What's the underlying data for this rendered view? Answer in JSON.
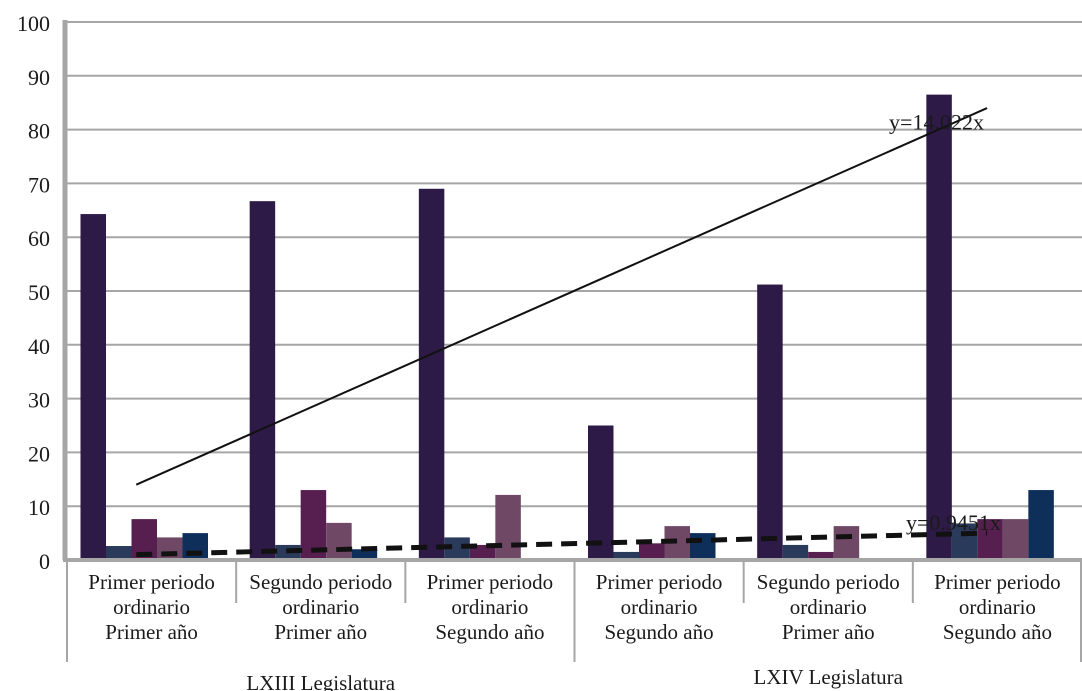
{
  "chart_data": {
    "type": "bar",
    "title": "",
    "xlabel": "",
    "ylabel": "",
    "ylim": [
      0,
      100
    ],
    "yticks": [
      0,
      10,
      20,
      30,
      40,
      50,
      60,
      70,
      80,
      90,
      100
    ],
    "grid": true,
    "legend": "none",
    "categories": [
      [
        "Primer periodo",
        "ordinario",
        "Primer año"
      ],
      [
        "Segundo periodo",
        "ordinario",
        "Primer año"
      ],
      [
        "Primer periodo",
        "ordinario",
        "Segundo año"
      ],
      [
        "Primer periodo",
        "ordinario",
        "Segundo año"
      ],
      [
        "Segundo periodo",
        "ordinario",
        "Primer año"
      ],
      [
        "Primer periodo",
        "ordinario",
        "Segundo año"
      ]
    ],
    "groups": [
      {
        "label": "LXIII Legislatura",
        "span": [
          0,
          2
        ]
      },
      {
        "label": "LXIV Legislatura",
        "span": [
          3,
          5
        ]
      }
    ],
    "series": [
      {
        "color": "#2e1a47",
        "values": [
          64.3,
          66.7,
          69.0,
          25.0,
          51.2,
          86.5
        ]
      },
      {
        "color": "#2a3a5a",
        "values": [
          2.6,
          2.8,
          4.2,
          1.5,
          2.8,
          6.8
        ]
      },
      {
        "color": "#561f4f",
        "values": [
          7.6,
          13.0,
          2.8,
          3.1,
          1.5,
          7.6
        ]
      },
      {
        "color": "#6f4866",
        "values": [
          4.2,
          6.9,
          12.1,
          6.3,
          6.3,
          7.6
        ]
      },
      {
        "color": "#0e2f5a",
        "values": [
          5.0,
          2.0,
          0,
          5.0,
          0,
          13.0
        ]
      }
    ],
    "trendlines": [
      {
        "label": "y=14.022x",
        "style": "solid",
        "from": [
          0,
          14
        ],
        "to": [
          5,
          84
        ],
        "label_at": [
          4.45,
          80
        ]
      },
      {
        "label": "y=0.9451x",
        "style": "dashed",
        "from": [
          0,
          1
        ],
        "to": [
          5,
          5
        ],
        "label_at": [
          4.55,
          5.6
        ]
      }
    ]
  }
}
